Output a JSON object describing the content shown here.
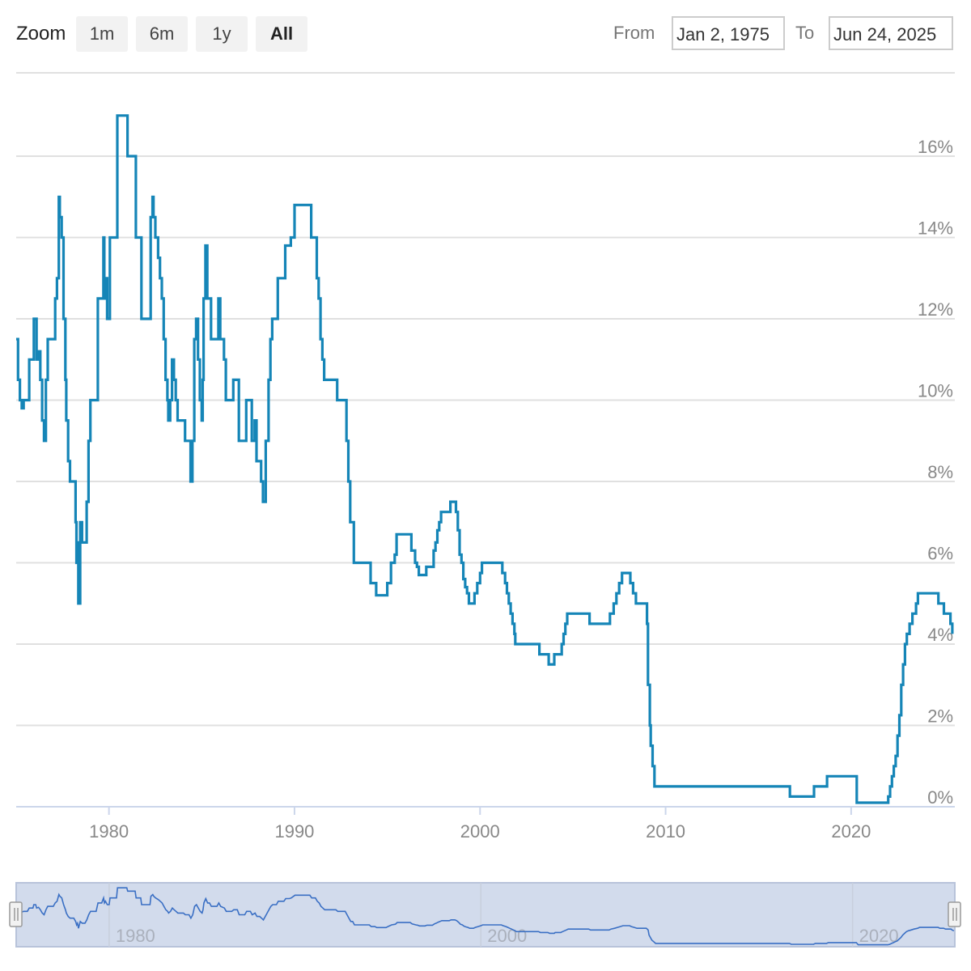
{
  "toolbar": {
    "zoom_label": "Zoom",
    "buttons": [
      "1m",
      "6m",
      "1y",
      "All"
    ],
    "active": "All",
    "from_label": "From",
    "from_value": "Jan 2, 1975",
    "to_label": "To",
    "to_value": "Jun 24, 2025"
  },
  "colors": {
    "line": "#1585b7",
    "navigator_line": "#3a6fc4",
    "navigator_fill": "#d2dbec",
    "grid": "#e0e0e0",
    "axis_text": "#888888"
  },
  "chart_data": {
    "type": "line",
    "title": "",
    "xlabel": "",
    "ylabel": "",
    "ylim": [
      0,
      18
    ],
    "xlim": [
      1975.0,
      2025.5
    ],
    "y_ticks": [
      "0%",
      "2%",
      "4%",
      "6%",
      "8%",
      "10%",
      "12%",
      "14%",
      "16%"
    ],
    "x_ticks": [
      "1980",
      "1990",
      "2000",
      "2010",
      "2020"
    ],
    "step": true,
    "grid": true,
    "series": [
      {
        "points": [
          [
            1975.0,
            11.5
          ],
          [
            1975.1,
            10.5
          ],
          [
            1975.2,
            10.0
          ],
          [
            1975.3,
            9.8
          ],
          [
            1975.4,
            10.0
          ],
          [
            1975.6,
            10.0
          ],
          [
            1975.7,
            11.0
          ],
          [
            1975.9,
            11.0
          ],
          [
            1975.95,
            12.0
          ],
          [
            1976.05,
            12.0
          ],
          [
            1976.1,
            11.0
          ],
          [
            1976.2,
            11.2
          ],
          [
            1976.3,
            10.5
          ],
          [
            1976.4,
            9.5
          ],
          [
            1976.5,
            9.0
          ],
          [
            1976.6,
            10.5
          ],
          [
            1976.7,
            11.5
          ],
          [
            1977.0,
            11.5
          ],
          [
            1977.1,
            12.5
          ],
          [
            1977.2,
            13.0
          ],
          [
            1977.3,
            15.0
          ],
          [
            1977.35,
            14.5
          ],
          [
            1977.45,
            14.0
          ],
          [
            1977.55,
            12.0
          ],
          [
            1977.65,
            10.5
          ],
          [
            1977.7,
            9.5
          ],
          [
            1977.8,
            8.5
          ],
          [
            1977.9,
            8.0
          ],
          [
            1978.1,
            8.0
          ],
          [
            1978.2,
            7.0
          ],
          [
            1978.25,
            6.0
          ],
          [
            1978.3,
            6.5
          ],
          [
            1978.35,
            5.0
          ],
          [
            1978.45,
            7.0
          ],
          [
            1978.55,
            6.5
          ],
          [
            1978.7,
            6.5
          ],
          [
            1978.8,
            7.5
          ],
          [
            1978.9,
            9.0
          ],
          [
            1979.0,
            10.0
          ],
          [
            1979.3,
            10.0
          ],
          [
            1979.4,
            12.5
          ],
          [
            1979.6,
            12.5
          ],
          [
            1979.7,
            14.0
          ],
          [
            1979.75,
            12.5
          ],
          [
            1979.8,
            13.0
          ],
          [
            1979.9,
            12.0
          ],
          [
            1980.0,
            12.0
          ],
          [
            1980.05,
            14.0
          ],
          [
            1980.4,
            14.0
          ],
          [
            1980.45,
            17.0
          ],
          [
            1980.95,
            17.0
          ],
          [
            1981.0,
            16.0
          ],
          [
            1981.4,
            16.0
          ],
          [
            1981.45,
            14.0
          ],
          [
            1981.7,
            14.0
          ],
          [
            1981.75,
            12.0
          ],
          [
            1982.2,
            12.0
          ],
          [
            1982.25,
            14.5
          ],
          [
            1982.35,
            15.0
          ],
          [
            1982.4,
            14.5
          ],
          [
            1982.5,
            14.0
          ],
          [
            1982.65,
            13.5
          ],
          [
            1982.75,
            13.0
          ],
          [
            1982.85,
            12.5
          ],
          [
            1982.95,
            11.5
          ],
          [
            1983.05,
            10.5
          ],
          [
            1983.15,
            10.0
          ],
          [
            1983.2,
            9.5
          ],
          [
            1983.3,
            10.0
          ],
          [
            1983.4,
            11.0
          ],
          [
            1983.5,
            10.5
          ],
          [
            1983.6,
            10.0
          ],
          [
            1983.7,
            9.5
          ],
          [
            1984.0,
            9.5
          ],
          [
            1984.1,
            9.0
          ],
          [
            1984.3,
            9.0
          ],
          [
            1984.4,
            8.0
          ],
          [
            1984.5,
            9.0
          ],
          [
            1984.6,
            11.5
          ],
          [
            1984.7,
            12.0
          ],
          [
            1984.8,
            11.0
          ],
          [
            1984.9,
            10.0
          ],
          [
            1985.0,
            9.5
          ],
          [
            1985.05,
            10.5
          ],
          [
            1985.1,
            12.5
          ],
          [
            1985.2,
            13.8
          ],
          [
            1985.3,
            12.5
          ],
          [
            1985.4,
            12.5
          ],
          [
            1985.5,
            11.5
          ],
          [
            1985.8,
            11.5
          ],
          [
            1985.9,
            12.5
          ],
          [
            1986.0,
            11.5
          ],
          [
            1986.2,
            11.0
          ],
          [
            1986.3,
            10.0
          ],
          [
            1986.6,
            10.0
          ],
          [
            1986.7,
            10.5
          ],
          [
            1986.9,
            10.5
          ],
          [
            1987.0,
            9.0
          ],
          [
            1987.3,
            9.0
          ],
          [
            1987.4,
            10.0
          ],
          [
            1987.6,
            10.0
          ],
          [
            1987.7,
            9.0
          ],
          [
            1987.85,
            9.5
          ],
          [
            1987.95,
            8.5
          ],
          [
            1988.1,
            8.5
          ],
          [
            1988.2,
            8.0
          ],
          [
            1988.3,
            7.5
          ],
          [
            1988.45,
            9.0
          ],
          [
            1988.6,
            10.5
          ],
          [
            1988.7,
            11.5
          ],
          [
            1988.8,
            12.0
          ],
          [
            1989.0,
            12.0
          ],
          [
            1989.1,
            13.0
          ],
          [
            1989.4,
            13.0
          ],
          [
            1989.5,
            13.8
          ],
          [
            1989.7,
            13.8
          ],
          [
            1989.8,
            14.0
          ],
          [
            1990.0,
            14.8
          ],
          [
            1990.8,
            14.8
          ],
          [
            1990.9,
            14.0
          ],
          [
            1991.1,
            14.0
          ],
          [
            1991.2,
            13.0
          ],
          [
            1991.3,
            12.5
          ],
          [
            1991.4,
            11.5
          ],
          [
            1991.5,
            11.0
          ],
          [
            1991.6,
            10.5
          ],
          [
            1991.7,
            10.5
          ],
          [
            1992.2,
            10.5
          ],
          [
            1992.3,
            10.0
          ],
          [
            1992.7,
            10.0
          ],
          [
            1992.8,
            9.0
          ],
          [
            1992.9,
            8.0
          ],
          [
            1993.0,
            7.0
          ],
          [
            1993.1,
            7.0
          ],
          [
            1993.2,
            6.0
          ],
          [
            1994.0,
            6.0
          ],
          [
            1994.1,
            5.5
          ],
          [
            1994.3,
            5.5
          ],
          [
            1994.4,
            5.2
          ],
          [
            1994.9,
            5.2
          ],
          [
            1995.0,
            5.5
          ],
          [
            1995.2,
            6.0
          ],
          [
            1995.4,
            6.2
          ],
          [
            1995.5,
            6.7
          ],
          [
            1996.2,
            6.7
          ],
          [
            1996.3,
            6.3
          ],
          [
            1996.5,
            6.0
          ],
          [
            1996.6,
            5.9
          ],
          [
            1996.7,
            5.7
          ],
          [
            1997.0,
            5.7
          ],
          [
            1997.1,
            5.9
          ],
          [
            1997.4,
            5.9
          ],
          [
            1997.5,
            6.3
          ],
          [
            1997.6,
            6.5
          ],
          [
            1997.7,
            6.8
          ],
          [
            1997.8,
            7.0
          ],
          [
            1997.9,
            7.25
          ],
          [
            1998.3,
            7.25
          ],
          [
            1998.4,
            7.5
          ],
          [
            1998.6,
            7.5
          ],
          [
            1998.7,
            7.25
          ],
          [
            1998.8,
            6.8
          ],
          [
            1998.9,
            6.2
          ],
          [
            1999.0,
            6.0
          ],
          [
            1999.1,
            5.6
          ],
          [
            1999.2,
            5.4
          ],
          [
            1999.3,
            5.25
          ],
          [
            1999.4,
            5.0
          ],
          [
            1999.6,
            5.0
          ],
          [
            1999.7,
            5.25
          ],
          [
            1999.85,
            5.5
          ],
          [
            2000.0,
            5.75
          ],
          [
            2000.1,
            6.0
          ],
          [
            2001.1,
            6.0
          ],
          [
            2001.2,
            5.75
          ],
          [
            2001.35,
            5.5
          ],
          [
            2001.45,
            5.25
          ],
          [
            2001.55,
            5.0
          ],
          [
            2001.65,
            4.75
          ],
          [
            2001.75,
            4.5
          ],
          [
            2001.85,
            4.25
          ],
          [
            2001.9,
            4.0
          ],
          [
            2003.1,
            4.0
          ],
          [
            2003.2,
            3.75
          ],
          [
            2003.6,
            3.75
          ],
          [
            2003.7,
            3.5
          ],
          [
            2003.95,
            3.5
          ],
          [
            2004.0,
            3.75
          ],
          [
            2004.3,
            3.75
          ],
          [
            2004.4,
            4.0
          ],
          [
            2004.5,
            4.25
          ],
          [
            2004.6,
            4.5
          ],
          [
            2004.7,
            4.75
          ],
          [
            2005.8,
            4.75
          ],
          [
            2005.9,
            4.5
          ],
          [
            2006.9,
            4.5
          ],
          [
            2007.0,
            4.75
          ],
          [
            2007.2,
            5.0
          ],
          [
            2007.35,
            5.25
          ],
          [
            2007.5,
            5.5
          ],
          [
            2007.65,
            5.75
          ],
          [
            2008.0,
            5.75
          ],
          [
            2008.1,
            5.5
          ],
          [
            2008.25,
            5.25
          ],
          [
            2008.4,
            5.0
          ],
          [
            2008.9,
            5.0
          ],
          [
            2009.0,
            4.5
          ],
          [
            2009.05,
            3.0
          ],
          [
            2009.15,
            2.0
          ],
          [
            2009.2,
            1.5
          ],
          [
            2009.3,
            1.0
          ],
          [
            2009.4,
            0.5
          ],
          [
            2016.6,
            0.5
          ],
          [
            2016.7,
            0.25
          ],
          [
            2017.9,
            0.25
          ],
          [
            2018.0,
            0.5
          ],
          [
            2018.6,
            0.5
          ],
          [
            2018.7,
            0.75
          ],
          [
            2020.2,
            0.75
          ],
          [
            2020.3,
            0.1
          ],
          [
            2021.9,
            0.1
          ],
          [
            2022.0,
            0.25
          ],
          [
            2022.1,
            0.5
          ],
          [
            2022.2,
            0.75
          ],
          [
            2022.3,
            1.0
          ],
          [
            2022.4,
            1.25
          ],
          [
            2022.5,
            1.75
          ],
          [
            2022.6,
            2.25
          ],
          [
            2022.7,
            3.0
          ],
          [
            2022.8,
            3.5
          ],
          [
            2022.9,
            4.0
          ],
          [
            2023.0,
            4.25
          ],
          [
            2023.15,
            4.5
          ],
          [
            2023.3,
            4.75
          ],
          [
            2023.5,
            5.0
          ],
          [
            2023.6,
            5.25
          ],
          [
            2024.6,
            5.25
          ],
          [
            2024.7,
            5.0
          ],
          [
            2024.9,
            5.0
          ],
          [
            2025.0,
            4.75
          ],
          [
            2025.3,
            4.75
          ],
          [
            2025.35,
            4.5
          ],
          [
            2025.45,
            4.25
          ]
        ]
      }
    ],
    "navigator": {
      "x_ticks": [
        "1980",
        "2000",
        "2020"
      ]
    }
  }
}
